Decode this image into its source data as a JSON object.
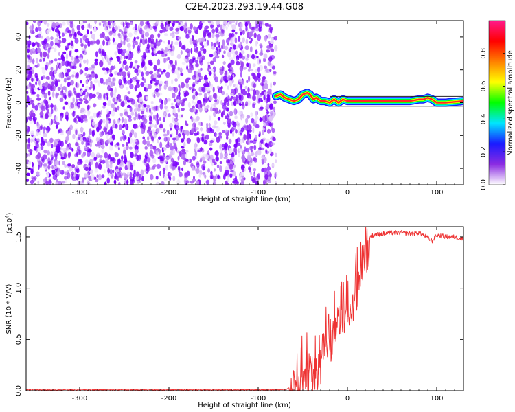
{
  "figure": {
    "title": "C2E4.2023.293.19.44.G08"
  },
  "chart_data": [
    {
      "type": "heatmap",
      "xlabel": "Height of straight line (km)",
      "ylabel": "Frequency (Hz)",
      "xlim": [
        -360,
        130
      ],
      "ylim": [
        -50,
        50
      ],
      "xticks": [
        -300,
        -200,
        -100,
        0,
        100
      ],
      "yticks": [
        -40,
        -20,
        0,
        20,
        40
      ],
      "xtick_labels": [
        "-300",
        "-200",
        "-100",
        "0",
        "100"
      ],
      "ytick_labels": [
        "-40",
        "-20",
        "0",
        "20",
        "40"
      ],
      "noise_region_x": [
        -360,
        -80
      ],
      "tone_line": {
        "x": [
          -80,
          -75,
          -70,
          -65,
          -60,
          -55,
          -50,
          -45,
          -42,
          -38,
          -35,
          -30,
          -25,
          -20,
          -15,
          -10,
          -5,
          0,
          10,
          30,
          50,
          70,
          80,
          85,
          90,
          95,
          100,
          110,
          130
        ],
        "y": [
          4,
          5,
          3,
          2,
          1,
          2,
          5,
          6,
          5,
          2,
          3,
          1,
          1,
          0,
          2,
          0,
          2,
          1,
          1,
          1,
          1,
          1,
          2,
          2,
          3,
          2,
          0,
          0,
          1
        ]
      },
      "colorbar": {
        "label": "Normalized spectral amplitude",
        "range": [
          0,
          1
        ],
        "ticks": [
          0.0,
          0.2,
          0.4,
          0.6,
          0.8
        ],
        "tick_labels": [
          "0.0",
          "0.2",
          "0.4",
          "0.6",
          "0.8"
        ],
        "colors": [
          "#ffffff",
          "#8a2be2",
          "#1a1aff",
          "#00e5ff",
          "#00ff00",
          "#ffff00",
          "#ff8000",
          "#ff0000",
          "#ff1a8c"
        ]
      }
    },
    {
      "type": "line",
      "xlabel": "Height of straight line (km)",
      "ylabel": "SNR (10 * V/V)",
      "y_multiplier": "(x10",
      "y_multiplier_exp": "4",
      "y_multiplier_close": ")",
      "xlim": [
        -360,
        130
      ],
      "ylim": [
        0,
        1.6
      ],
      "xticks": [
        -300,
        -200,
        -100,
        0,
        100
      ],
      "yticks": [
        0.0,
        0.5,
        1.0,
        1.5
      ],
      "xtick_labels": [
        "-300",
        "-200",
        "-100",
        "0",
        "100"
      ],
      "ytick_labels": [
        "0.0",
        "0.5",
        "1.0",
        "1.5"
      ],
      "series_color": "#ee3333",
      "series": [
        {
          "x": [
            -360,
            -300,
            -200,
            -100,
            -70,
            -60,
            -55,
            -50,
            -45,
            -40,
            -35,
            -30,
            -25,
            -20,
            -15,
            -10,
            -5,
            0,
            5,
            10,
            15,
            20,
            25,
            30,
            40,
            50,
            60,
            70,
            80,
            85,
            90,
            95,
            100,
            110,
            120,
            130
          ],
          "y": [
            0.01,
            0.01,
            0.01,
            0.01,
            0.01,
            0.05,
            0.15,
            0.3,
            0.3,
            0.35,
            0.3,
            0.4,
            0.55,
            0.6,
            0.7,
            0.85,
            0.9,
            0.95,
            1.0,
            1.1,
            1.25,
            1.4,
            1.5,
            1.52,
            1.53,
            1.54,
            1.54,
            1.53,
            1.54,
            1.52,
            1.49,
            1.46,
            1.52,
            1.5,
            1.5,
            1.48
          ]
        }
      ]
    }
  ]
}
